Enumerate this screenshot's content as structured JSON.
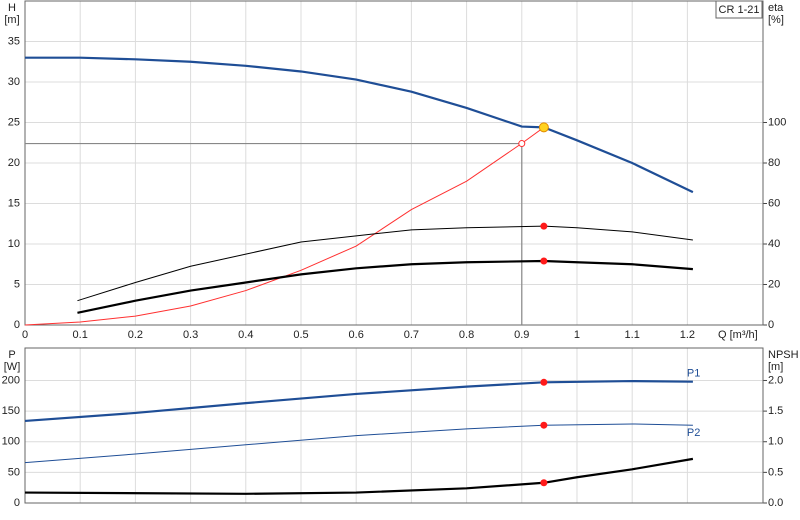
{
  "chart_data": [
    {
      "type": "line",
      "y_label": "H",
      "y_unit": "[m]",
      "y2_label": "eta",
      "y2_unit": "[%]",
      "x_label": "Q [m³/h]",
      "badge": "CR 1-21",
      "xlim": [
        0,
        1.337
      ],
      "xticks": [
        0,
        0.1,
        0.2,
        0.3,
        0.4,
        0.5,
        0.6,
        0.7,
        0.8,
        0.9,
        1.0,
        1.1,
        1.2
      ],
      "ylim": [
        0,
        40
      ],
      "yticks": [
        0,
        5,
        10,
        15,
        20,
        25,
        30,
        35
      ],
      "y2lim": [
        0,
        160
      ],
      "y2ticks": [
        0,
        20,
        40,
        60,
        80,
        100
      ],
      "grid": true,
      "operating_x": 0.94,
      "duty_point": {
        "x": 0.9,
        "y": 22.4
      },
      "series": [
        {
          "color": "#1f4e96",
          "style": "thick",
          "point_color": "#ffd21f",
          "x": [
            0,
            0.1,
            0.2,
            0.3,
            0.4,
            0.5,
            0.6,
            0.7,
            0.8,
            0.9,
            0.94,
            1.0,
            1.1,
            1.21
          ],
          "values": [
            33,
            33,
            32.8,
            32.5,
            32,
            31.3,
            30.3,
            28.8,
            26.8,
            24.5,
            24.4,
            22.8,
            20,
            16.4
          ]
        },
        {
          "axis": "y2",
          "color": "#ff3030",
          "style": "thin",
          "x": [
            0,
            0.1,
            0.2,
            0.3,
            0.4,
            0.5,
            0.6,
            0.7,
            0.8,
            0.9,
            0.94
          ],
          "values": [
            0,
            1.5,
            4.4,
            9.4,
            17,
            27,
            39,
            57,
            71,
            89.7,
            97.6
          ]
        },
        {
          "axis": "y2",
          "color": "#000000",
          "style": "thin",
          "point_color": "#ff1a1a",
          "x": [
            0.095,
            0.2,
            0.3,
            0.4,
            0.5,
            0.6,
            0.7,
            0.8,
            0.94,
            1.0,
            1.1,
            1.21
          ],
          "values": [
            12,
            21,
            29,
            35,
            41,
            44,
            47,
            48,
            48.8,
            48,
            46,
            42
          ]
        },
        {
          "axis": "y2",
          "color": "#000000",
          "style": "thick",
          "point_color": "#ff1a1a",
          "x": [
            0.095,
            0.2,
            0.3,
            0.4,
            0.5,
            0.6,
            0.7,
            0.8,
            0.94,
            1.0,
            1.1,
            1.21
          ],
          "values": [
            6,
            12,
            17,
            21,
            25,
            28,
            30,
            31,
            31.6,
            31,
            30,
            27.6
          ]
        }
      ]
    },
    {
      "type": "line",
      "y_label": "P",
      "y_unit": "[W]",
      "y2_label": "NPSH",
      "y2_unit": "[m]",
      "xlim": [
        0,
        1.337
      ],
      "ylim": [
        0,
        253
      ],
      "yticks": [
        0,
        50,
        100,
        150,
        200
      ],
      "y2lim": [
        0,
        2.53
      ],
      "y2ticks": [
        {
          "value": 0,
          "label": "0.0"
        },
        0.5,
        {
          "value": 1,
          "label": "1.0"
        },
        1.5,
        {
          "value": 2,
          "label": "2.0"
        }
      ],
      "grid": true,
      "operating_x": 0.94,
      "series": [
        {
          "name": "P1",
          "color": "#1f4e96",
          "style": "thick",
          "point_color": "#ff1a1a",
          "x": [
            0,
            0.2,
            0.4,
            0.6,
            0.8,
            0.94,
            1.1,
            1.21
          ],
          "values": [
            134,
            147,
            163,
            178,
            190,
            197,
            199,
            198
          ]
        },
        {
          "name": "P2",
          "color": "#1f4e96",
          "style": "thin",
          "point_color": "#ff1a1a",
          "x": [
            0,
            0.2,
            0.4,
            0.6,
            0.8,
            0.94,
            1.1,
            1.21
          ],
          "values": [
            66,
            80,
            95,
            110,
            121,
            127,
            129,
            127
          ]
        },
        {
          "axis": "y2",
          "color": "#000000",
          "style": "thick",
          "point_color": "#ff1a1a",
          "x": [
            0,
            0.4,
            0.6,
            0.8,
            0.94,
            1.0,
            1.1,
            1.21
          ],
          "values": [
            0.17,
            0.15,
            0.17,
            0.24,
            0.33,
            0.42,
            0.55,
            0.72
          ]
        }
      ]
    }
  ]
}
